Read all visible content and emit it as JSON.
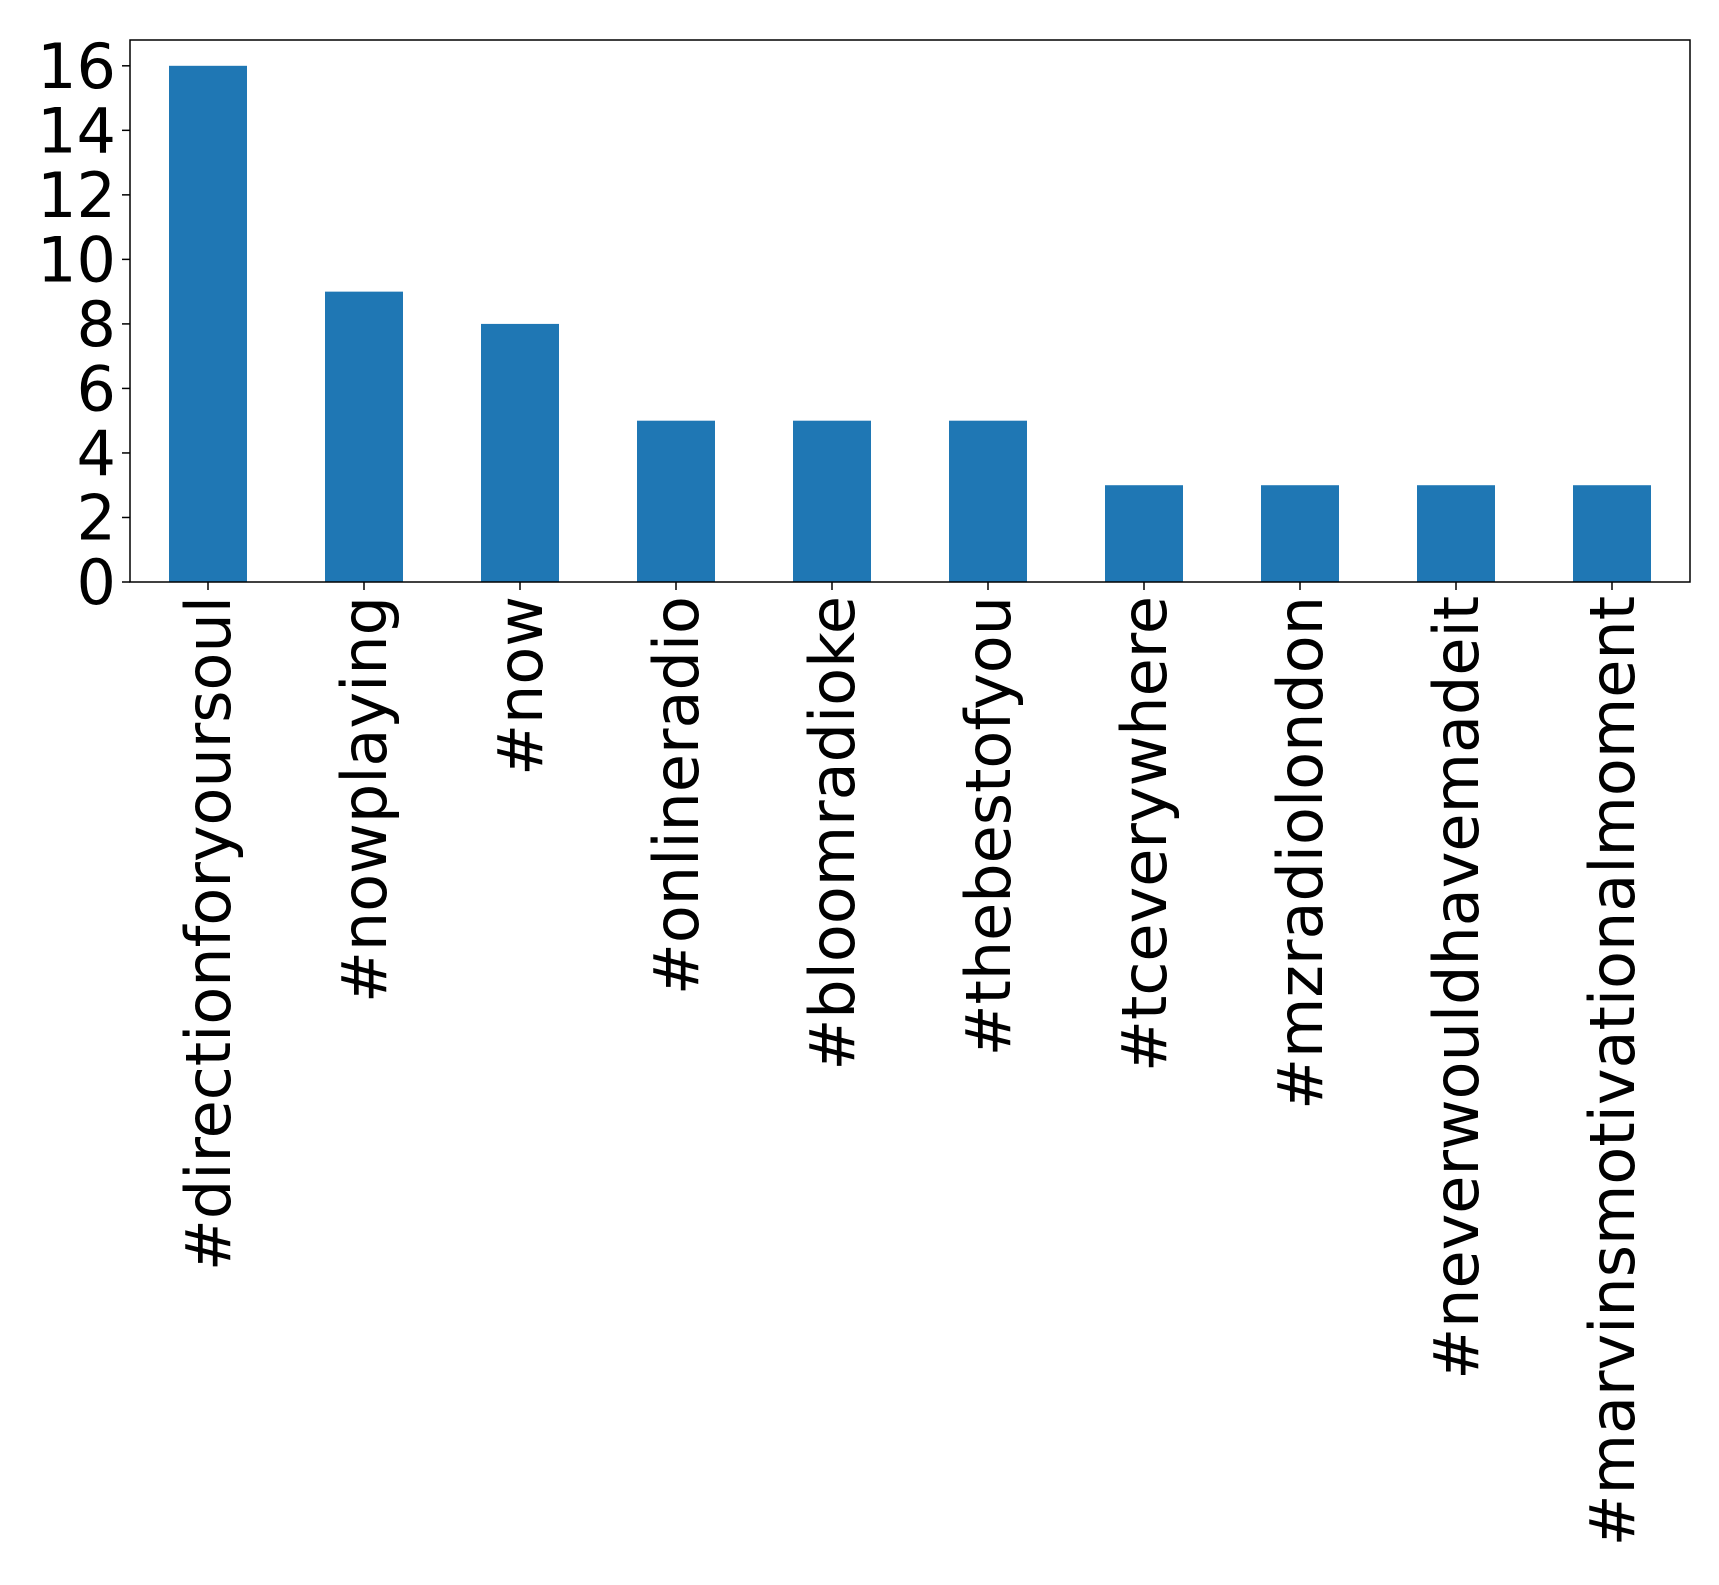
{
  "chart_data": {
    "type": "bar",
    "title": "",
    "xlabel": "",
    "ylabel": "",
    "categories": [
      "#directionforyoursoul",
      "#nowplaying",
      "#now",
      "#onlineradio",
      "#bloomradioke",
      "#thebestofyou",
      "#tceverywhere",
      "#mzradiolondon",
      "#neverwouldhavemadeit",
      "#marvinsmotivationalmoment"
    ],
    "values": [
      16,
      9,
      8,
      5,
      5,
      5,
      3,
      3,
      3,
      3
    ],
    "ylim": [
      0,
      16.8
    ],
    "yticks": [
      0,
      2,
      4,
      6,
      8,
      10,
      12,
      14,
      16
    ],
    "grid": false,
    "legend": "none",
    "colors": {
      "bar": "#1f77b4",
      "axis": "#000000"
    }
  }
}
